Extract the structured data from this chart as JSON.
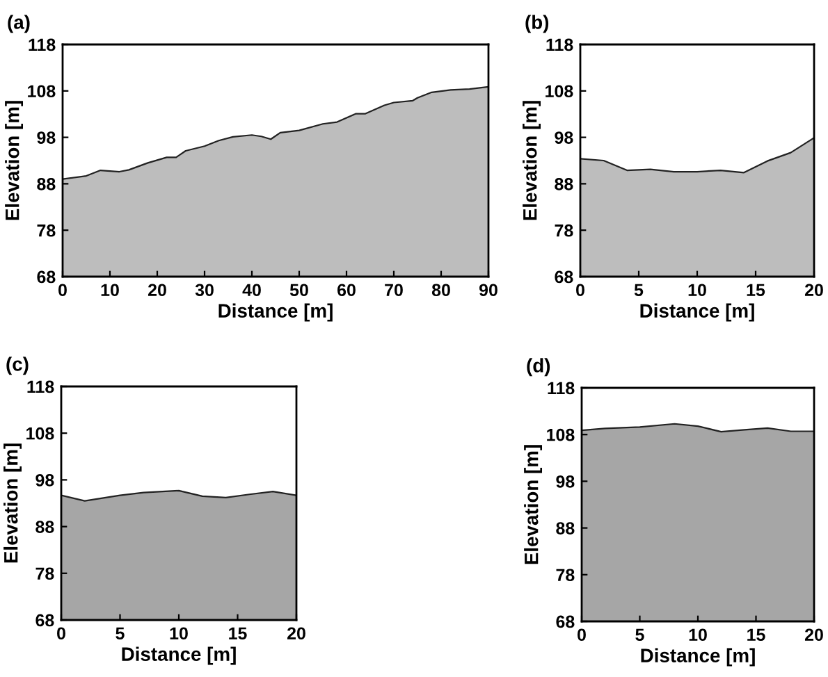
{
  "chart_data": [
    {
      "type": "area",
      "title": "(a)",
      "xlabel": "Distance [m]",
      "ylabel": "Elevation [m]",
      "xlim": [
        0,
        90
      ],
      "xticks": [
        0,
        10,
        20,
        30,
        40,
        50,
        60,
        70,
        80,
        90
      ],
      "ylim": [
        68,
        118
      ],
      "yticks": [
        68,
        78,
        88,
        98,
        108,
        118
      ],
      "grid": false,
      "x": [
        0,
        5,
        8,
        12,
        14,
        18,
        22,
        24,
        26,
        30,
        33,
        36,
        40,
        42,
        44,
        46,
        50,
        55,
        58,
        62,
        64,
        68,
        70,
        74,
        75,
        78,
        82,
        86,
        90
      ],
      "series": [
        {
          "color": "#bdbdbd",
          "values": [
            89,
            89.7,
            90.9,
            90.6,
            91,
            92.5,
            93.7,
            93.7,
            95.1,
            96.1,
            97.3,
            98.1,
            98.5,
            98.2,
            97.6,
            99,
            99.5,
            100.9,
            101.3,
            103.1,
            103.1,
            104.9,
            105.5,
            105.9,
            106.5,
            107.7,
            108.2,
            108.4,
            108.9
          ]
        }
      ]
    },
    {
      "type": "area",
      "title": "(b)",
      "xlabel": "Distance [m]",
      "ylabel": "Elevation [m]",
      "xlim": [
        0,
        20
      ],
      "xticks": [
        0,
        5,
        10,
        15,
        20
      ],
      "ylim": [
        68,
        118
      ],
      "yticks": [
        68,
        78,
        88,
        98,
        108,
        118
      ],
      "grid": false,
      "x": [
        0,
        2,
        4,
        6,
        8,
        10,
        12,
        14,
        16,
        18,
        20
      ],
      "series": [
        {
          "color": "#bdbdbd",
          "values": [
            93.4,
            93,
            90.9,
            91.1,
            90.6,
            90.6,
            90.9,
            90.4,
            92.9,
            94.7,
            97.9
          ]
        }
      ]
    },
    {
      "type": "area",
      "title": "(c)",
      "xlabel": "Distance [m]",
      "ylabel": "Elevation [m]",
      "xlim": [
        0,
        20
      ],
      "xticks": [
        0,
        5,
        10,
        15,
        20
      ],
      "ylim": [
        68,
        118
      ],
      "yticks": [
        68,
        78,
        88,
        98,
        108,
        118
      ],
      "grid": false,
      "x": [
        0,
        2,
        5,
        7,
        10,
        12,
        14,
        16,
        18,
        20
      ],
      "series": [
        {
          "color": "#a6a6a6",
          "values": [
            94.7,
            93.5,
            94.7,
            95.3,
            95.7,
            94.5,
            94.2,
            94.9,
            95.5,
            94.7
          ]
        }
      ]
    },
    {
      "type": "area",
      "title": "(d)",
      "xlabel": "Distance [m]",
      "ylabel": "Elevation [m]",
      "xlim": [
        0,
        20
      ],
      "xticks": [
        0,
        5,
        10,
        15,
        20
      ],
      "ylim": [
        68,
        118
      ],
      "yticks": [
        68,
        78,
        88,
        98,
        108,
        118
      ],
      "grid": false,
      "x": [
        0,
        2,
        5,
        8,
        10,
        12,
        14,
        16,
        18,
        20
      ],
      "series": [
        {
          "color": "#a6a6a6",
          "values": [
            108.9,
            109.3,
            109.6,
            110.3,
            109.8,
            108.6,
            109,
            109.4,
            108.7,
            108.7
          ]
        }
      ]
    }
  ]
}
